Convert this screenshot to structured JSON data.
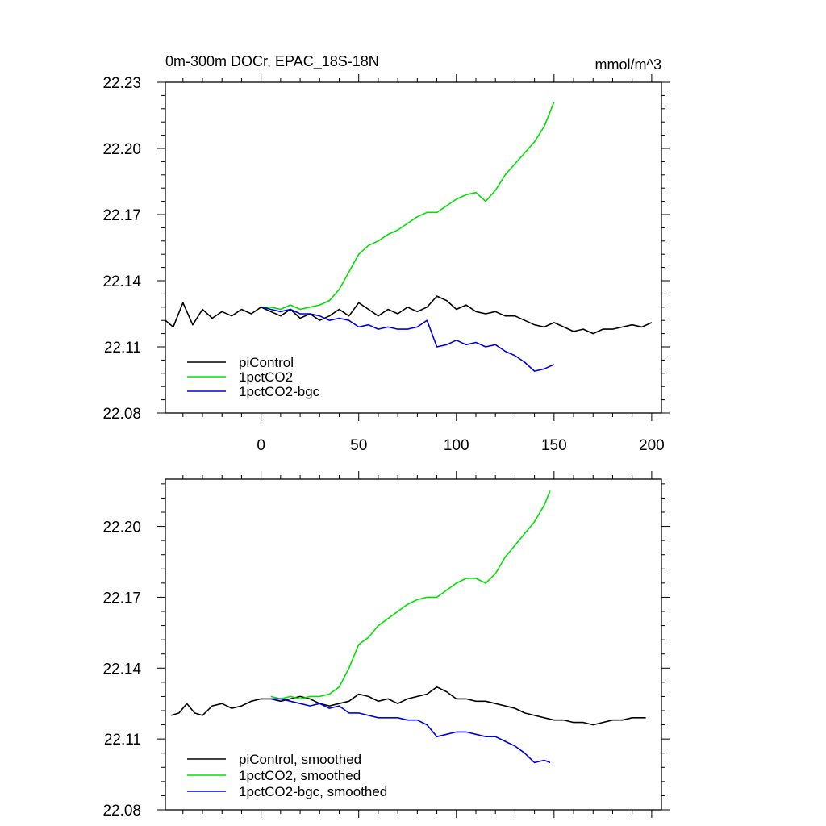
{
  "chart_data": [
    {
      "type": "line",
      "title": "0m-300m DOCr, EPAC_18S-18N",
      "units": "mmol/m^3",
      "xlim": [
        -49,
        205
      ],
      "ylim": [
        22.08,
        22.23
      ],
      "xticks": [
        0,
        50,
        100,
        150,
        200
      ],
      "xtick_labels": [
        "0",
        "50",
        "100",
        "150",
        "200"
      ],
      "yticks": [
        22.08,
        22.11,
        22.14,
        22.17,
        22.2,
        22.23
      ],
      "ytick_labels": [
        "22.08",
        "22.11",
        "22.14",
        "22.17",
        "22.20",
        "22.23"
      ],
      "legend_position": "bottom-left",
      "series": [
        {
          "name": "piControl",
          "color": "#000000",
          "x": [
            -49,
            -45,
            -40,
            -35,
            -30,
            -25,
            -20,
            -15,
            -10,
            -5,
            0,
            5,
            10,
            15,
            20,
            25,
            30,
            35,
            40,
            45,
            50,
            55,
            60,
            65,
            70,
            75,
            80,
            85,
            90,
            95,
            100,
            105,
            110,
            115,
            120,
            125,
            130,
            135,
            140,
            145,
            150,
            155,
            160,
            165,
            170,
            175,
            180,
            185,
            190,
            195,
            200
          ],
          "values": [
            22.122,
            22.119,
            22.13,
            22.12,
            22.127,
            22.123,
            22.126,
            22.124,
            22.127,
            22.125,
            22.128,
            22.126,
            22.124,
            22.127,
            22.123,
            22.125,
            22.122,
            22.124,
            22.127,
            22.124,
            22.13,
            22.127,
            22.124,
            22.127,
            22.125,
            22.128,
            22.126,
            22.128,
            22.133,
            22.131,
            22.127,
            22.129,
            22.126,
            22.125,
            22.126,
            22.124,
            22.124,
            22.122,
            22.12,
            22.119,
            22.121,
            22.119,
            22.117,
            22.118,
            22.116,
            22.118,
            22.118,
            22.119,
            22.12,
            22.119,
            22.121
          ]
        },
        {
          "name": "1pctCO2",
          "color": "#00e000",
          "x": [
            1,
            5,
            10,
            15,
            20,
            25,
            30,
            35,
            40,
            45,
            50,
            55,
            60,
            65,
            70,
            75,
            80,
            85,
            90,
            95,
            100,
            105,
            110,
            115,
            120,
            125,
            130,
            135,
            140,
            145,
            150
          ],
          "values": [
            22.128,
            22.128,
            22.127,
            22.129,
            22.127,
            22.128,
            22.129,
            22.131,
            22.136,
            22.144,
            22.152,
            22.156,
            22.158,
            22.161,
            22.163,
            22.166,
            22.169,
            22.171,
            22.171,
            22.174,
            22.177,
            22.179,
            22.18,
            22.176,
            22.181,
            22.188,
            22.193,
            22.198,
            22.203,
            22.21,
            22.221
          ]
        },
        {
          "name": "1pctCO2-bgc",
          "color": "#0000e0",
          "x": [
            1,
            5,
            10,
            15,
            20,
            25,
            30,
            35,
            40,
            45,
            50,
            55,
            60,
            65,
            70,
            75,
            80,
            85,
            90,
            95,
            100,
            105,
            110,
            115,
            120,
            125,
            130,
            135,
            140,
            145,
            150
          ],
          "values": [
            22.128,
            22.127,
            22.126,
            22.127,
            22.125,
            22.125,
            22.124,
            22.122,
            22.123,
            22.122,
            22.119,
            22.12,
            22.118,
            22.119,
            22.118,
            22.118,
            22.119,
            22.122,
            22.11,
            22.111,
            22.113,
            22.111,
            22.112,
            22.11,
            22.111,
            22.108,
            22.106,
            22.103,
            22.099,
            22.1,
            22.102
          ]
        }
      ]
    },
    {
      "type": "line",
      "title": "",
      "xlim": [
        -49,
        205
      ],
      "ylim": [
        22.08,
        22.22
      ],
      "xticks": [
        0,
        50,
        100,
        150,
        200
      ],
      "yticks": [
        22.08,
        22.11,
        22.14,
        22.17,
        22.2
      ],
      "ytick_labels": [
        "22.08",
        "22.11",
        "22.14",
        "22.17",
        "22.20"
      ],
      "legend_position": "bottom-left",
      "series": [
        {
          "name": "piControl, smoothed",
          "color": "#000000",
          "x": [
            -46,
            -42,
            -38,
            -34,
            -30,
            -25,
            -20,
            -15,
            -10,
            -5,
            0,
            5,
            10,
            15,
            20,
            25,
            30,
            35,
            40,
            45,
            50,
            55,
            60,
            65,
            70,
            75,
            80,
            85,
            90,
            95,
            100,
            105,
            110,
            115,
            120,
            125,
            130,
            135,
            140,
            145,
            150,
            155,
            160,
            165,
            170,
            175,
            180,
            185,
            190,
            195,
            197
          ],
          "values": [
            22.12,
            22.121,
            22.125,
            22.121,
            22.12,
            22.124,
            22.125,
            22.123,
            22.124,
            22.126,
            22.127,
            22.127,
            22.126,
            22.127,
            22.128,
            22.127,
            22.125,
            22.124,
            22.125,
            22.126,
            22.129,
            22.128,
            22.126,
            22.127,
            22.125,
            22.127,
            22.128,
            22.129,
            22.132,
            22.13,
            22.127,
            22.127,
            22.126,
            22.126,
            22.125,
            22.124,
            22.123,
            22.121,
            22.12,
            22.119,
            22.118,
            22.118,
            22.117,
            22.117,
            22.116,
            22.117,
            22.118,
            22.118,
            22.119,
            22.119,
            22.119
          ]
        },
        {
          "name": "1pctCO2, smoothed",
          "color": "#00e000",
          "x": [
            5,
            10,
            15,
            20,
            25,
            30,
            35,
            40,
            45,
            50,
            55,
            60,
            65,
            70,
            75,
            80,
            85,
            90,
            95,
            100,
            105,
            110,
            115,
            120,
            125,
            130,
            135,
            140,
            145,
            148
          ],
          "values": [
            22.128,
            22.127,
            22.128,
            22.127,
            22.128,
            22.128,
            22.129,
            22.132,
            22.14,
            22.15,
            22.153,
            22.158,
            22.161,
            22.164,
            22.167,
            22.169,
            22.17,
            22.17,
            22.173,
            22.176,
            22.178,
            22.178,
            22.176,
            22.18,
            22.187,
            22.192,
            22.197,
            22.202,
            22.209,
            22.215
          ]
        },
        {
          "name": "1pctCO2-bgc, smoothed",
          "color": "#0000e0",
          "x": [
            5,
            10,
            15,
            20,
            25,
            30,
            35,
            40,
            45,
            50,
            55,
            60,
            65,
            70,
            75,
            80,
            85,
            90,
            95,
            100,
            105,
            110,
            115,
            120,
            125,
            130,
            135,
            140,
            145,
            148
          ],
          "values": [
            22.127,
            22.127,
            22.126,
            22.125,
            22.124,
            22.125,
            22.123,
            22.124,
            22.121,
            22.121,
            22.12,
            22.119,
            22.119,
            22.119,
            22.118,
            22.118,
            22.116,
            22.111,
            22.112,
            22.113,
            22.113,
            22.112,
            22.111,
            22.111,
            22.109,
            22.107,
            22.104,
            22.1,
            22.101,
            22.1
          ]
        }
      ]
    }
  ]
}
